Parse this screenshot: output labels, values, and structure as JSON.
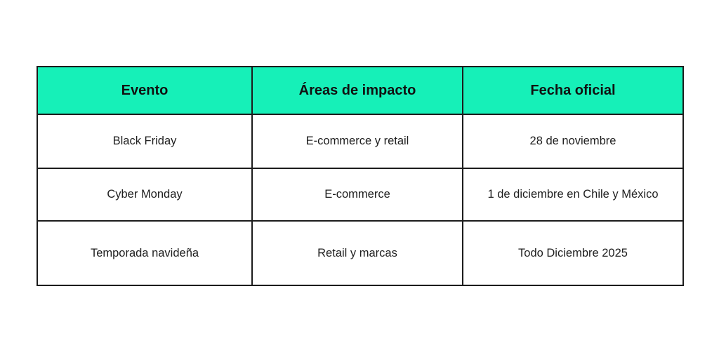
{
  "colors": {
    "header_background": "#16F0B8",
    "border": "#1c1c1c"
  },
  "table": {
    "headers": [
      "Evento",
      "Áreas de impacto",
      "Fecha oficial"
    ],
    "rows": [
      [
        "Black Friday",
        "E-commerce y retail",
        "28 de noviembre"
      ],
      [
        "Cyber Monday",
        "E-commerce",
        "1 de diciembre en Chile y México"
      ],
      [
        "Temporada navideña",
        "Retail y marcas",
        "Todo Diciembre 2025"
      ]
    ]
  }
}
